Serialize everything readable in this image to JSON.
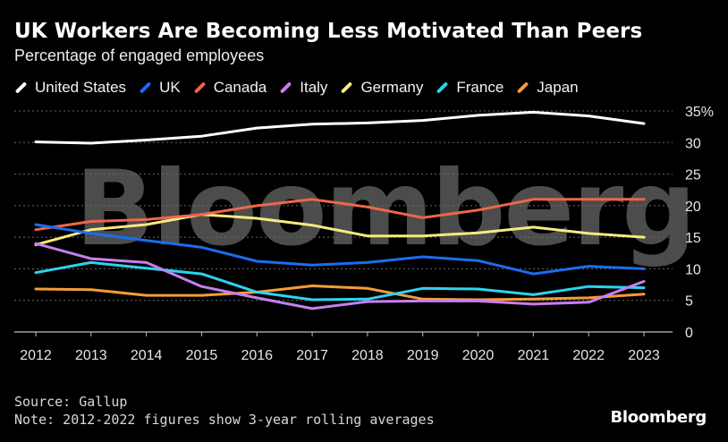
{
  "chart_data": {
    "type": "line",
    "title": "UK Workers Are Becoming Less Motivated Than Peers",
    "subtitle": "Percentage of engaged employees",
    "x": [
      2012,
      2013,
      2014,
      2015,
      2016,
      2017,
      2018,
      2019,
      2020,
      2021,
      2022,
      2023
    ],
    "x_labels": [
      "2012",
      "2013",
      "2014",
      "2015",
      "2016",
      "2017",
      "2018",
      "2019",
      "2020",
      "2021",
      "2022",
      "2023"
    ],
    "ylim": [
      0,
      35
    ],
    "y_ticks": [
      0,
      5,
      10,
      15,
      20,
      25,
      30,
      35
    ],
    "y_tick_labels": [
      "0",
      "5",
      "10",
      "15",
      "20",
      "25",
      "30",
      "35%"
    ],
    "legend_position": "top-left",
    "series": [
      {
        "name": "United States",
        "color": "#ffffff",
        "values": [
          30.1,
          29.9,
          30.4,
          31.0,
          32.3,
          32.9,
          33.1,
          33.5,
          34.3,
          34.8,
          34.2,
          33.0
        ]
      },
      {
        "name": "UK",
        "color": "#1a6df0",
        "values": [
          17.0,
          15.6,
          14.5,
          13.4,
          11.2,
          10.6,
          11.0,
          11.9,
          11.3,
          9.2,
          10.4,
          10.0
        ]
      },
      {
        "name": "Canada",
        "color": "#f0654c",
        "values": [
          16.2,
          17.5,
          17.8,
          18.6,
          20.0,
          21.0,
          19.8,
          18.1,
          19.3,
          21.0,
          21.0,
          21.0
        ]
      },
      {
        "name": "Italy",
        "color": "#c97ef0",
        "values": [
          14.0,
          11.6,
          11.0,
          7.2,
          5.4,
          3.7,
          4.8,
          4.9,
          4.9,
          4.4,
          4.7,
          8.0
        ]
      },
      {
        "name": "Germany",
        "color": "#f7ea7e",
        "values": [
          13.8,
          16.2,
          17.0,
          18.6,
          18.0,
          16.9,
          15.2,
          15.2,
          15.7,
          16.6,
          15.6,
          15.0
        ]
      },
      {
        "name": "France",
        "color": "#2ed3ee",
        "values": [
          9.4,
          11.0,
          10.1,
          9.2,
          6.3,
          5.1,
          5.2,
          6.9,
          6.8,
          5.9,
          7.2,
          7.0
        ]
      },
      {
        "name": "Japan",
        "color": "#f49d3a",
        "values": [
          6.8,
          6.7,
          5.8,
          5.8,
          6.3,
          7.3,
          6.9,
          5.2,
          5.1,
          5.2,
          5.4,
          6.0
        ]
      }
    ]
  },
  "watermark": "Bloomberg",
  "source": "Source: Gallup",
  "note": "Note: 2012-2022 figures show 3-year rolling averages",
  "brand": "Bloomberg"
}
